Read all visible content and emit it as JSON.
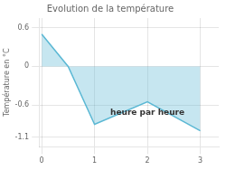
{
  "chart_data": {
    "type": "area",
    "title": "Evolution de la température",
    "x": [
      0,
      0.5,
      1,
      2,
      3
    ],
    "values": [
      0.5,
      0.0,
      -0.9,
      -0.55,
      -1.0
    ],
    "color": "#5bb8d4",
    "ylabel": "Température en °C",
    "xlim": [
      -0.05,
      3.35
    ],
    "ylim": [
      -1.25,
      0.75
    ],
    "xticks": [
      0,
      1,
      2,
      3
    ],
    "yticks": [
      -1.1,
      -0.6,
      0.0,
      0.6
    ],
    "grid": true,
    "annotations": [
      {
        "text": "heure par heure",
        "x": 2.0,
        "y": -0.72
      }
    ]
  }
}
